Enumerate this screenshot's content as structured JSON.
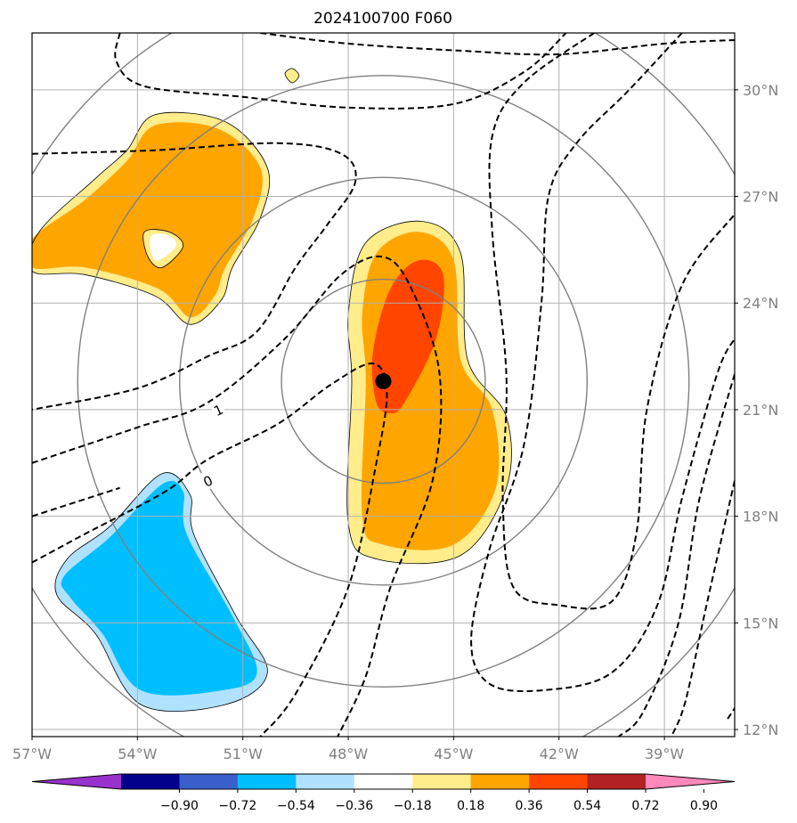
{
  "chart_data": {
    "type": "contour",
    "title": "2024100700 F060",
    "xlim": [
      -57.0,
      -37.0
    ],
    "ylim": [
      11.8,
      31.6
    ],
    "grid": true,
    "x_ticks": [
      {
        "value": -57,
        "label": "57°W"
      },
      {
        "value": -54,
        "label": "54°W"
      },
      {
        "value": -51,
        "label": "51°W"
      },
      {
        "value": -48,
        "label": "48°W"
      },
      {
        "value": -45,
        "label": "45°W"
      },
      {
        "value": -42,
        "label": "42°W"
      },
      {
        "value": -39,
        "label": "39°W"
      }
    ],
    "y_ticks": [
      {
        "value": 30,
        "label": "30°N"
      },
      {
        "value": 27,
        "label": "27°N"
      },
      {
        "value": 24,
        "label": "24°N"
      },
      {
        "value": 21,
        "label": "21°N"
      },
      {
        "value": 18,
        "label": "18°N"
      },
      {
        "value": 15,
        "label": "15°N"
      },
      {
        "value": 12,
        "label": "12°N"
      }
    ],
    "center": {
      "lon": -47.0,
      "lat": 21.8
    },
    "range_rings_deg": [
      2.9,
      5.8,
      8.7,
      11.6
    ],
    "colorbar": {
      "ticks": [
        "−0.90",
        "−0.72",
        "−0.54",
        "−0.36",
        "−0.18",
        "0.18",
        "0.36",
        "0.54",
        "0.72",
        "0.90"
      ],
      "colors": [
        "#9932cc",
        "#00008b",
        "#3a5fcd",
        "#00bfff",
        "#b0e2ff",
        "#ffffff",
        "#ffec8b",
        "#ffa500",
        "#ff4500",
        "#b22222",
        "#ff88bb"
      ]
    },
    "shaded_regions": [
      {
        "level": "0.18–0.36",
        "color": "#ffec8b",
        "points": [
          [
            -47.5,
            25.7
          ],
          [
            -45.9,
            26.3
          ],
          [
            -44.8,
            25.4
          ],
          [
            -44.6,
            22.4
          ],
          [
            -43.5,
            20.8
          ],
          [
            -43.5,
            18.8
          ],
          [
            -44.8,
            16.9
          ],
          [
            -47.2,
            16.8
          ],
          [
            -48.0,
            17.8
          ],
          [
            -47.9,
            21.8
          ],
          [
            -48.0,
            23.7
          ]
        ]
      },
      {
        "level": "0.36–0.54",
        "color": "#ffa500",
        "points": [
          [
            -47.2,
            25.4
          ],
          [
            -46.0,
            26.0
          ],
          [
            -45.0,
            25.2
          ],
          [
            -44.8,
            22.4
          ],
          [
            -43.9,
            21.0
          ],
          [
            -43.8,
            18.8
          ],
          [
            -45.0,
            17.2
          ],
          [
            -47.0,
            17.2
          ],
          [
            -47.6,
            18.0
          ],
          [
            -47.5,
            21.8
          ],
          [
            -47.6,
            23.7
          ]
        ]
      },
      {
        "level": "0.54–0.72",
        "color": "#ff4500",
        "points": [
          [
            -46.8,
            24.4
          ],
          [
            -46.0,
            25.2
          ],
          [
            -45.3,
            24.8
          ],
          [
            -45.5,
            23.0
          ],
          [
            -46.4,
            21.2
          ],
          [
            -46.8,
            20.9
          ],
          [
            -47.2,
            21.2
          ],
          [
            -47.3,
            22.6
          ]
        ]
      },
      {
        "level": "0.18–0.36",
        "color": "#ffec8b",
        "points": [
          [
            -56.8,
            26.0
          ],
          [
            -55.2,
            27.5
          ],
          [
            -54.3,
            28.3
          ],
          [
            -53.5,
            29.3
          ],
          [
            -51.5,
            29.1
          ],
          [
            -50.3,
            27.8
          ],
          [
            -50.5,
            26.4
          ],
          [
            -51.3,
            25.0
          ],
          [
            -51.6,
            24.1
          ],
          [
            -52.5,
            23.4
          ],
          [
            -53.5,
            24.2
          ],
          [
            -55.5,
            24.8
          ],
          [
            -57.0,
            24.9
          ]
        ]
      },
      {
        "level": "0.36–0.54",
        "color": "#ffa500",
        "points": [
          [
            -57.0,
            25.8
          ],
          [
            -55.5,
            26.9
          ],
          [
            -54.3,
            28.0
          ],
          [
            -53.5,
            29.0
          ],
          [
            -51.7,
            28.9
          ],
          [
            -50.5,
            27.8
          ],
          [
            -50.7,
            26.4
          ],
          [
            -51.5,
            25.0
          ],
          [
            -51.8,
            24.2
          ],
          [
            -52.5,
            23.6
          ],
          [
            -53.4,
            24.4
          ],
          [
            -55.5,
            25.0
          ],
          [
            -57.0,
            25.0
          ]
        ]
      },
      {
        "level": "0.18–0.36",
        "color": "#ffec8b",
        "points": [
          [
            -53.8,
            26.0
          ],
          [
            -53.1,
            26.0
          ],
          [
            -52.7,
            25.6
          ],
          [
            -53.3,
            25.0
          ],
          [
            -53.7,
            25.3
          ]
        ]
      },
      {
        "level": "-0.18–0.18",
        "color": "#ffffff",
        "points": [
          [
            -53.6,
            25.9
          ],
          [
            -53.1,
            25.9
          ],
          [
            -52.9,
            25.6
          ],
          [
            -53.4,
            25.2
          ],
          [
            -53.6,
            25.4
          ]
        ]
      },
      {
        "level": "-0.36–-0.18",
        "color": "#b0e2ff",
        "points": [
          [
            -56.0,
            16.8
          ],
          [
            -54.8,
            17.7
          ],
          [
            -53.3,
            19.2
          ],
          [
            -52.5,
            18.6
          ],
          [
            -52.4,
            17.5
          ],
          [
            -51.2,
            15.2
          ],
          [
            -50.3,
            13.6
          ],
          [
            -51.5,
            12.7
          ],
          [
            -53.9,
            12.7
          ],
          [
            -55.2,
            14.7
          ],
          [
            -56.3,
            15.8
          ]
        ]
      },
      {
        "level": "-0.54–-0.36",
        "color": "#00bfff",
        "points": [
          [
            -56.1,
            16.3
          ],
          [
            -54.8,
            17.4
          ],
          [
            -53.3,
            18.9
          ],
          [
            -52.7,
            18.7
          ],
          [
            -52.6,
            17.5
          ],
          [
            -51.3,
            15.2
          ],
          [
            -50.6,
            13.6
          ],
          [
            -51.6,
            13.1
          ],
          [
            -53.9,
            13.1
          ],
          [
            -55.0,
            14.7
          ],
          [
            -55.9,
            15.7
          ]
        ]
      },
      {
        "level": "0.18–0.36",
        "color": "#ffec8b",
        "points": [
          [
            -49.6,
            30.6
          ],
          [
            -49.4,
            30.4
          ],
          [
            -49.6,
            30.2
          ],
          [
            -49.8,
            30.45
          ]
        ]
      }
    ],
    "dashed_contours": [
      {
        "label": "1",
        "label_at": [
          -51.7,
          21.0
        ],
        "points": [
          [
            -57,
            19.5
          ],
          [
            -54,
            20.5
          ],
          [
            -52,
            21.2
          ],
          [
            -49.8,
            23.0
          ],
          [
            -48.2,
            24.8
          ],
          [
            -47,
            25.3
          ],
          [
            -46.2,
            24.4
          ],
          [
            -45.4,
            22.0
          ],
          [
            -45.6,
            19.0
          ],
          [
            -46.8,
            16.0
          ],
          [
            -47.5,
            13.5
          ],
          [
            -48.3,
            11.8
          ]
        ]
      },
      {
        "label": "0",
        "label_at": [
          -52.0,
          19.0
        ],
        "points": [
          [
            -57,
            16.7
          ],
          [
            -55.5,
            17.5
          ],
          [
            -53.2,
            18.7
          ],
          [
            -52,
            19.6
          ],
          [
            -50,
            20.6
          ],
          [
            -48.5,
            21.7
          ],
          [
            -47.3,
            22.3
          ],
          [
            -46.9,
            21.5
          ],
          [
            -47.2,
            19.5
          ],
          [
            -48.0,
            16.0
          ],
          [
            -49.5,
            13.0
          ],
          [
            -50.5,
            11.8
          ]
        ]
      },
      {
        "label": "",
        "points": [
          [
            -57,
            18.0
          ],
          [
            -54.5,
            18.8
          ]
        ]
      },
      {
        "label": "",
        "points": [
          [
            -57,
            28.2
          ],
          [
            -53.5,
            28.3
          ],
          [
            -50.0,
            28.5
          ],
          [
            -48.2,
            28.2
          ],
          [
            -47.8,
            27.4
          ],
          [
            -48.6,
            26.2
          ],
          [
            -49.5,
            25.0
          ],
          [
            -50.6,
            23.2
          ],
          [
            -52.0,
            22.5
          ],
          [
            -54.0,
            21.6
          ],
          [
            -57,
            21.0
          ]
        ]
      },
      {
        "label": "",
        "points": [
          [
            -54.5,
            31.6
          ],
          [
            -54.6,
            30.8
          ],
          [
            -53.8,
            30.1
          ],
          [
            -51.0,
            29.8
          ],
          [
            -48.0,
            29.5
          ],
          [
            -45.0,
            29.6
          ],
          [
            -43.0,
            30.5
          ],
          [
            -41.8,
            31.6
          ]
        ]
      },
      {
        "label": "",
        "points": [
          [
            -50.5,
            31.6
          ],
          [
            -48.0,
            31.3
          ],
          [
            -44.8,
            31.1
          ],
          [
            -42.0,
            31.0
          ],
          [
            -39.0,
            31.3
          ],
          [
            -37.0,
            31.4
          ]
        ]
      },
      {
        "label": "",
        "points": [
          [
            -41.0,
            31.6
          ],
          [
            -43.0,
            30.2
          ],
          [
            -43.9,
            28.7
          ],
          [
            -43.9,
            26.0
          ],
          [
            -43.5,
            22.0
          ],
          [
            -43.6,
            18.5
          ],
          [
            -43.3,
            16.0
          ],
          [
            -42.0,
            15.5
          ],
          [
            -40.5,
            15.6
          ],
          [
            -39.8,
            17.5
          ],
          [
            -39.5,
            21.0
          ],
          [
            -38.5,
            24.5
          ],
          [
            -37.0,
            26.5
          ]
        ]
      },
      {
        "label": "",
        "points": [
          [
            -38.5,
            31.6
          ],
          [
            -40.0,
            30.0
          ],
          [
            -41.5,
            28.5
          ],
          [
            -42.3,
            27.0
          ],
          [
            -42.5,
            24.0
          ],
          [
            -43.0,
            20.0
          ],
          [
            -44.0,
            17.0
          ],
          [
            -44.5,
            14.5
          ],
          [
            -44.0,
            13.3
          ],
          [
            -42.5,
            13.1
          ],
          [
            -40.5,
            13.6
          ],
          [
            -39.2,
            15.5
          ],
          [
            -38.5,
            18.5
          ],
          [
            -37.5,
            22.0
          ],
          [
            -37.0,
            23.0
          ]
        ]
      },
      {
        "label": "",
        "points": [
          [
            -37.0,
            22.0
          ],
          [
            -38.0,
            18.5
          ],
          [
            -38.6,
            15.0
          ],
          [
            -39.6,
            12.5
          ],
          [
            -40.3,
            11.8
          ]
        ]
      },
      {
        "label": "",
        "points": [
          [
            -37.0,
            19.0
          ],
          [
            -37.8,
            15.5
          ],
          [
            -38.4,
            12.8
          ],
          [
            -38.8,
            11.8
          ]
        ]
      },
      {
        "label": "",
        "points": [
          [
            -37.2,
            12.3
          ],
          [
            -37.0,
            12.6
          ]
        ]
      }
    ]
  }
}
